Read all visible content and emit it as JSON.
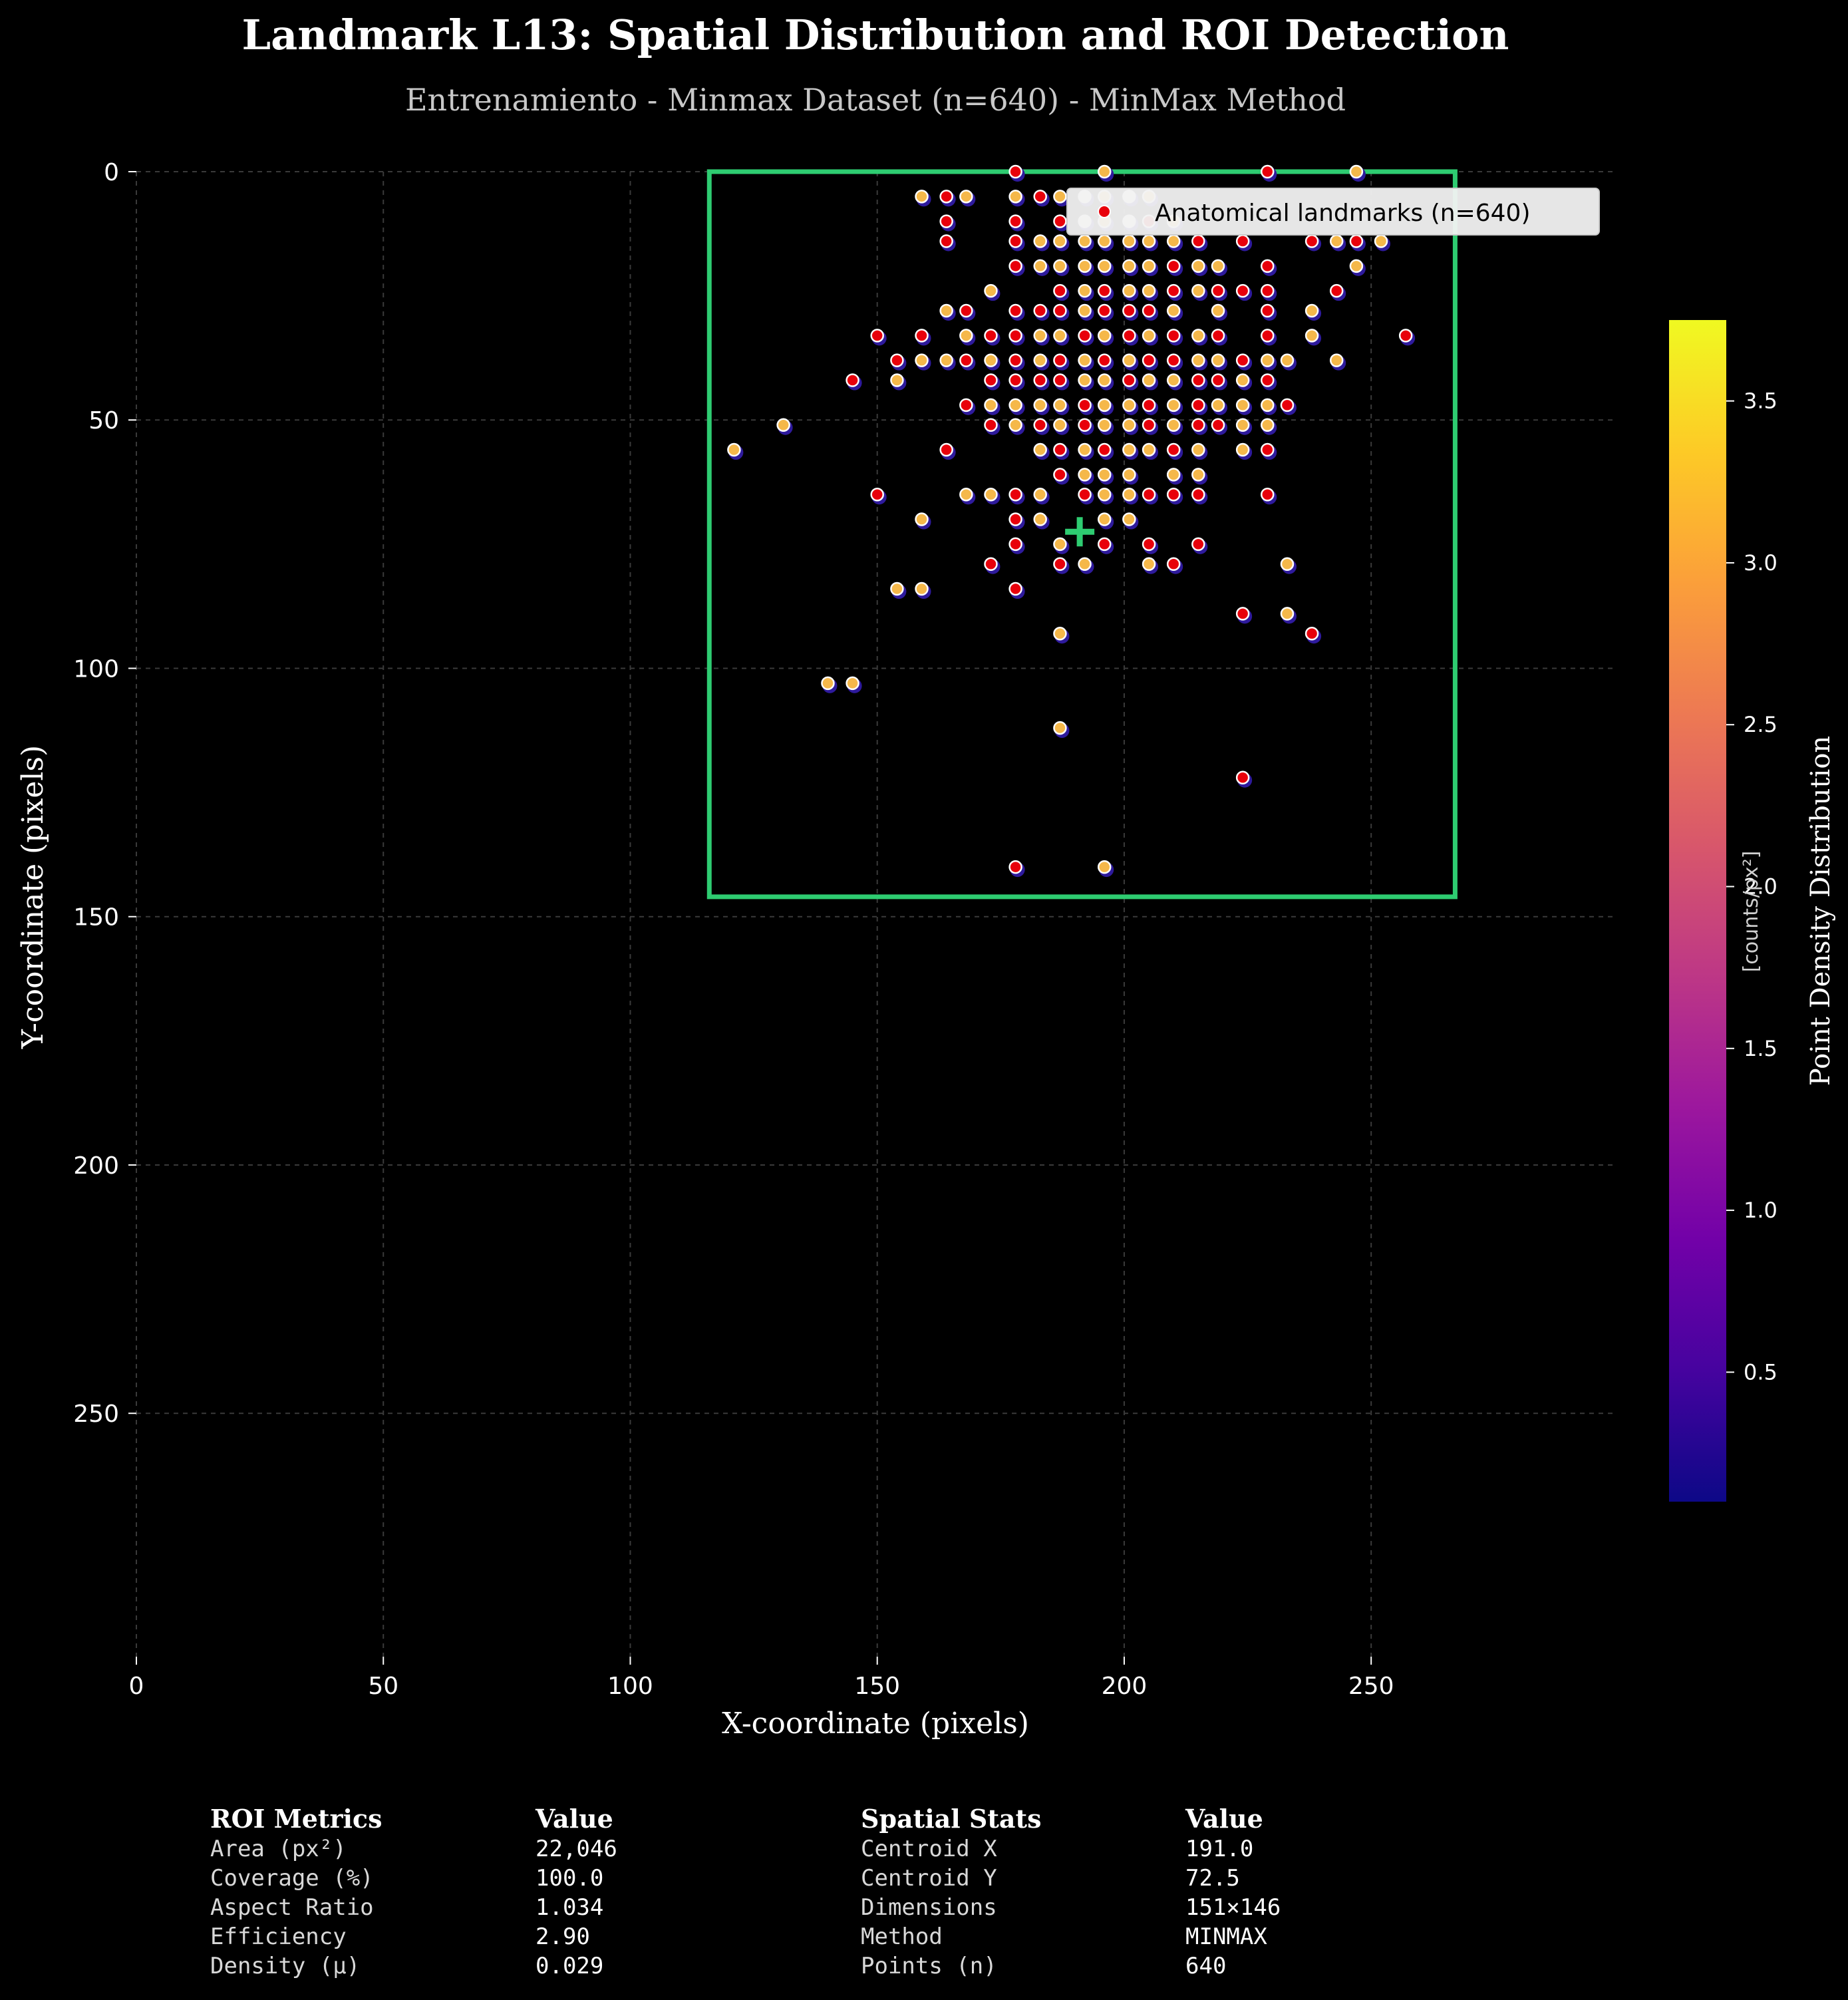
{
  "title": "Landmark L13: Spatial Distribution and ROI Detection",
  "subtitle": "Entrenamiento - Minmax Dataset (n=640) - MinMax Method",
  "chart_data": {
    "type": "scatter",
    "xlabel": "X-coordinate (pixels)",
    "ylabel": "Y-coordinate (pixels)",
    "xlim": [
      0,
      299
    ],
    "ylim": [
      299,
      0
    ],
    "y_inverted": true,
    "grid": true,
    "xticks": [
      0,
      50,
      100,
      150,
      200,
      250
    ],
    "yticks": [
      0,
      50,
      100,
      150,
      200,
      250
    ],
    "legend": {
      "label": "Anatomical landmarks (n=640)",
      "placement": "upper-right"
    },
    "colorbar": {
      "label": "Point Density Distribution",
      "unit": "[counts/px²]",
      "colormap": "plasma",
      "range": [
        0.1,
        3.75
      ],
      "ticks": [
        0.5,
        1.0,
        1.5,
        2.0,
        2.5,
        3.0,
        3.5
      ],
      "colors": [
        "#0d0887",
        "#46039f",
        "#7201a8",
        "#9c179e",
        "#bd3786",
        "#d8576b",
        "#ed7953",
        "#fb9f3a",
        "#fdca26",
        "#f0f921"
      ]
    },
    "roi": {
      "x_min": 116,
      "x_max": 267,
      "y_min": 0,
      "y_max": 146,
      "color": "#2ecc71"
    },
    "centroid": {
      "x": 191.0,
      "y": 72.5,
      "marker": "plus",
      "color": "#2ecc71"
    },
    "points": [
      [
        159,
        5,
        "a"
      ],
      [
        164,
        5,
        "r"
      ],
      [
        168,
        5,
        "a"
      ],
      [
        178,
        5,
        "a"
      ],
      [
        183,
        5,
        "r"
      ],
      [
        187,
        5,
        "a"
      ],
      [
        192,
        5,
        "w"
      ],
      [
        196,
        5,
        "a"
      ],
      [
        201,
        5,
        "w"
      ],
      [
        205,
        5,
        "a"
      ],
      [
        164,
        10,
        "r"
      ],
      [
        178,
        10,
        "r"
      ],
      [
        187,
        10,
        "r"
      ],
      [
        192,
        10,
        "w"
      ],
      [
        196,
        10,
        "a"
      ],
      [
        201,
        10,
        "w"
      ],
      [
        205,
        10,
        "r"
      ],
      [
        210,
        10,
        "a"
      ],
      [
        164,
        14,
        "r"
      ],
      [
        178,
        14,
        "r"
      ],
      [
        183,
        14,
        "a"
      ],
      [
        187,
        14,
        "a"
      ],
      [
        192,
        14,
        "a"
      ],
      [
        196,
        14,
        "a"
      ],
      [
        201,
        14,
        "a"
      ],
      [
        205,
        14,
        "a"
      ],
      [
        210,
        14,
        "a"
      ],
      [
        215,
        14,
        "r"
      ],
      [
        224,
        14,
        "r"
      ],
      [
        238,
        14,
        "r"
      ],
      [
        243,
        14,
        "a"
      ],
      [
        247,
        14,
        "r"
      ],
      [
        252,
        14,
        "a"
      ],
      [
        178,
        19,
        "r"
      ],
      [
        183,
        19,
        "a"
      ],
      [
        187,
        19,
        "a"
      ],
      [
        192,
        19,
        "a"
      ],
      [
        196,
        19,
        "a"
      ],
      [
        201,
        19,
        "a"
      ],
      [
        205,
        19,
        "a"
      ],
      [
        210,
        19,
        "r"
      ],
      [
        215,
        19,
        "a"
      ],
      [
        219,
        19,
        "a"
      ],
      [
        229,
        19,
        "r"
      ],
      [
        247,
        19,
        "a"
      ],
      [
        173,
        24,
        "a"
      ],
      [
        187,
        24,
        "r"
      ],
      [
        192,
        24,
        "a"
      ],
      [
        196,
        24,
        "r"
      ],
      [
        201,
        24,
        "a"
      ],
      [
        205,
        24,
        "a"
      ],
      [
        210,
        24,
        "r"
      ],
      [
        215,
        24,
        "a"
      ],
      [
        219,
        24,
        "r"
      ],
      [
        224,
        24,
        "r"
      ],
      [
        229,
        24,
        "r"
      ],
      [
        243,
        24,
        "r"
      ],
      [
        164,
        28,
        "a"
      ],
      [
        168,
        28,
        "r"
      ],
      [
        178,
        28,
        "r"
      ],
      [
        183,
        28,
        "r"
      ],
      [
        187,
        28,
        "r"
      ],
      [
        192,
        28,
        "a"
      ],
      [
        196,
        28,
        "r"
      ],
      [
        201,
        28,
        "r"
      ],
      [
        205,
        28,
        "r"
      ],
      [
        210,
        28,
        "a"
      ],
      [
        219,
        28,
        "a"
      ],
      [
        229,
        28,
        "r"
      ],
      [
        238,
        28,
        "a"
      ],
      [
        150,
        33,
        "r"
      ],
      [
        159,
        33,
        "r"
      ],
      [
        168,
        33,
        "a"
      ],
      [
        173,
        33,
        "r"
      ],
      [
        178,
        33,
        "r"
      ],
      [
        183,
        33,
        "a"
      ],
      [
        187,
        33,
        "a"
      ],
      [
        192,
        33,
        "r"
      ],
      [
        196,
        33,
        "a"
      ],
      [
        201,
        33,
        "r"
      ],
      [
        205,
        33,
        "a"
      ],
      [
        210,
        33,
        "r"
      ],
      [
        215,
        33,
        "a"
      ],
      [
        219,
        33,
        "r"
      ],
      [
        229,
        33,
        "r"
      ],
      [
        238,
        33,
        "a"
      ],
      [
        257,
        33,
        "r"
      ],
      [
        154,
        38,
        "r"
      ],
      [
        159,
        38,
        "a"
      ],
      [
        164,
        38,
        "a"
      ],
      [
        168,
        38,
        "r"
      ],
      [
        173,
        38,
        "a"
      ],
      [
        178,
        38,
        "r"
      ],
      [
        183,
        38,
        "a"
      ],
      [
        187,
        38,
        "r"
      ],
      [
        192,
        38,
        "a"
      ],
      [
        196,
        38,
        "r"
      ],
      [
        201,
        38,
        "a"
      ],
      [
        205,
        38,
        "r"
      ],
      [
        210,
        38,
        "r"
      ],
      [
        215,
        38,
        "a"
      ],
      [
        219,
        38,
        "a"
      ],
      [
        224,
        38,
        "r"
      ],
      [
        229,
        38,
        "a"
      ],
      [
        233,
        38,
        "a"
      ],
      [
        243,
        38,
        "a"
      ],
      [
        145,
        42,
        "r"
      ],
      [
        154,
        42,
        "a"
      ],
      [
        173,
        42,
        "r"
      ],
      [
        178,
        42,
        "r"
      ],
      [
        183,
        42,
        "r"
      ],
      [
        187,
        42,
        "r"
      ],
      [
        192,
        42,
        "a"
      ],
      [
        196,
        42,
        "a"
      ],
      [
        201,
        42,
        "r"
      ],
      [
        205,
        42,
        "a"
      ],
      [
        210,
        42,
        "a"
      ],
      [
        215,
        42,
        "r"
      ],
      [
        219,
        42,
        "r"
      ],
      [
        224,
        42,
        "a"
      ],
      [
        229,
        42,
        "r"
      ],
      [
        168,
        47,
        "r"
      ],
      [
        173,
        47,
        "a"
      ],
      [
        178,
        47,
        "a"
      ],
      [
        183,
        47,
        "a"
      ],
      [
        187,
        47,
        "a"
      ],
      [
        192,
        47,
        "r"
      ],
      [
        196,
        47,
        "a"
      ],
      [
        201,
        47,
        "a"
      ],
      [
        205,
        47,
        "r"
      ],
      [
        210,
        47,
        "a"
      ],
      [
        215,
        47,
        "r"
      ],
      [
        219,
        47,
        "a"
      ],
      [
        224,
        47,
        "a"
      ],
      [
        229,
        47,
        "a"
      ],
      [
        233,
        47,
        "r"
      ],
      [
        131,
        51,
        "a"
      ],
      [
        173,
        51,
        "r"
      ],
      [
        178,
        51,
        "a"
      ],
      [
        183,
        51,
        "r"
      ],
      [
        187,
        51,
        "a"
      ],
      [
        192,
        51,
        "r"
      ],
      [
        196,
        51,
        "a"
      ],
      [
        201,
        51,
        "a"
      ],
      [
        205,
        51,
        "r"
      ],
      [
        210,
        51,
        "a"
      ],
      [
        215,
        51,
        "r"
      ],
      [
        219,
        51,
        "r"
      ],
      [
        224,
        51,
        "a"
      ],
      [
        229,
        51,
        "a"
      ],
      [
        121,
        56,
        "a"
      ],
      [
        164,
        56,
        "r"
      ],
      [
        183,
        56,
        "a"
      ],
      [
        187,
        56,
        "r"
      ],
      [
        192,
        56,
        "a"
      ],
      [
        196,
        56,
        "r"
      ],
      [
        201,
        56,
        "a"
      ],
      [
        205,
        56,
        "a"
      ],
      [
        210,
        56,
        "r"
      ],
      [
        215,
        56,
        "a"
      ],
      [
        224,
        56,
        "a"
      ],
      [
        229,
        56,
        "r"
      ],
      [
        187,
        61,
        "r"
      ],
      [
        192,
        61,
        "a"
      ],
      [
        196,
        61,
        "a"
      ],
      [
        201,
        61,
        "a"
      ],
      [
        210,
        61,
        "a"
      ],
      [
        215,
        61,
        "a"
      ],
      [
        150,
        65,
        "r"
      ],
      [
        168,
        65,
        "a"
      ],
      [
        173,
        65,
        "a"
      ],
      [
        178,
        65,
        "r"
      ],
      [
        183,
        65,
        "a"
      ],
      [
        192,
        65,
        "r"
      ],
      [
        196,
        65,
        "a"
      ],
      [
        201,
        65,
        "a"
      ],
      [
        205,
        65,
        "r"
      ],
      [
        210,
        65,
        "r"
      ],
      [
        215,
        65,
        "r"
      ],
      [
        229,
        65,
        "r"
      ],
      [
        159,
        70,
        "a"
      ],
      [
        178,
        70,
        "r"
      ],
      [
        183,
        70,
        "a"
      ],
      [
        196,
        70,
        "a"
      ],
      [
        201,
        70,
        "a"
      ],
      [
        178,
        75,
        "r"
      ],
      [
        187,
        75,
        "a"
      ],
      [
        196,
        75,
        "r"
      ],
      [
        205,
        75,
        "r"
      ],
      [
        215,
        75,
        "r"
      ],
      [
        173,
        79,
        "r"
      ],
      [
        187,
        79,
        "r"
      ],
      [
        192,
        79,
        "a"
      ],
      [
        205,
        79,
        "a"
      ],
      [
        210,
        79,
        "r"
      ],
      [
        233,
        79,
        "a"
      ],
      [
        154,
        84,
        "a"
      ],
      [
        159,
        84,
        "a"
      ],
      [
        178,
        84,
        "r"
      ],
      [
        224,
        89,
        "r"
      ],
      [
        233,
        89,
        "a"
      ],
      [
        187,
        93,
        "a"
      ],
      [
        238,
        93,
        "r"
      ],
      [
        140,
        103,
        "a"
      ],
      [
        145,
        103,
        "a"
      ],
      [
        187,
        112,
        "a"
      ],
      [
        224,
        122,
        "r"
      ],
      [
        178,
        140,
        "r"
      ],
      [
        196,
        140,
        "a"
      ],
      [
        178,
        0,
        "r"
      ],
      [
        196,
        0,
        "a"
      ],
      [
        229,
        0,
        "r"
      ],
      [
        247,
        0,
        "a"
      ]
    ]
  },
  "metrics_table": {
    "left_header": "ROI Metrics",
    "left_value_header": "Value",
    "right_header": "Spatial Stats",
    "right_value_header": "Value",
    "rows": [
      {
        "label": "Area (px²)",
        "value": "22,046",
        "stat": "Centroid X",
        "stat_value": "191.0"
      },
      {
        "label": "Coverage (%)",
        "value": "100.0",
        "stat": "Centroid Y",
        "stat_value": "72.5"
      },
      {
        "label": "Aspect Ratio",
        "value": "1.034",
        "stat": "Dimensions",
        "stat_value": "151×146"
      },
      {
        "label": "Efficiency",
        "value": "2.90",
        "stat": "Method",
        "stat_value": "MINMAX"
      },
      {
        "label": "Density (μ)",
        "value": "0.029",
        "stat": "Points (n)",
        "stat_value": "640"
      }
    ]
  }
}
